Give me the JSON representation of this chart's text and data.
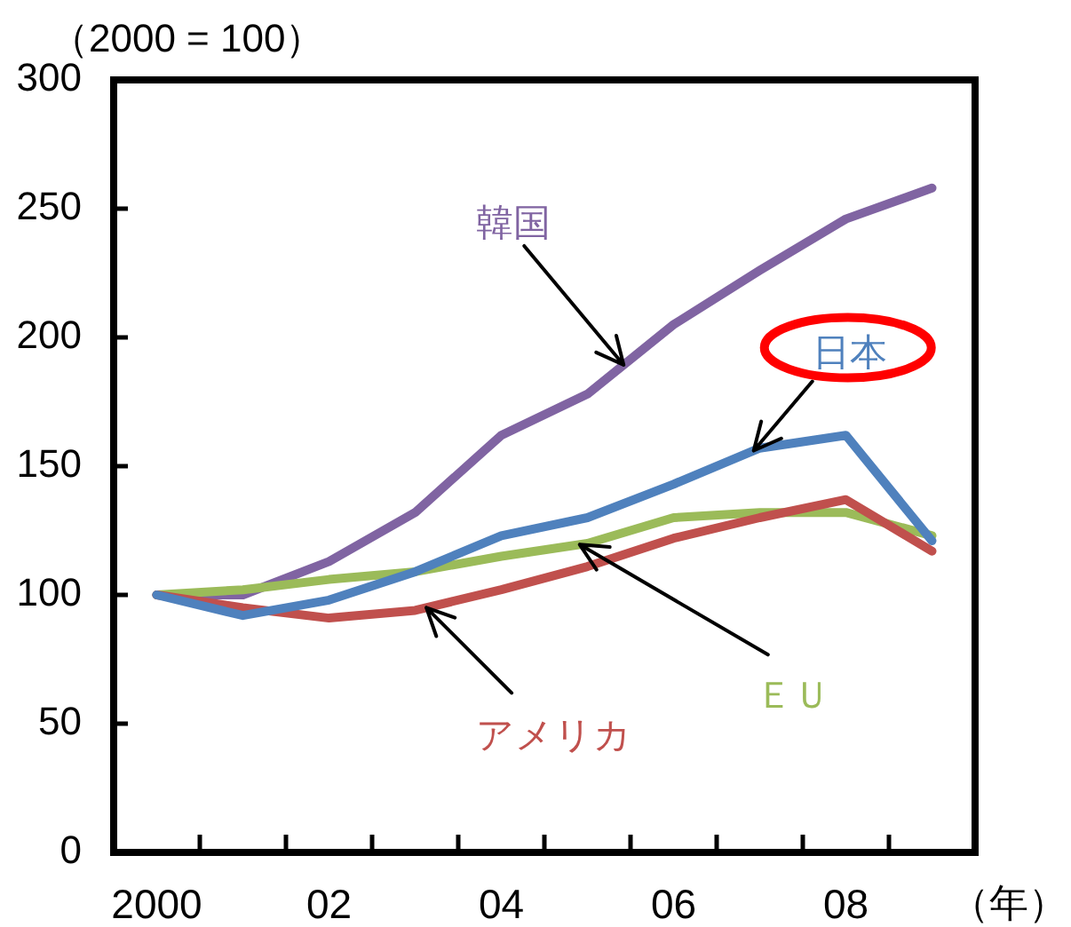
{
  "chart_data": {
    "type": "line",
    "xlabel": "（年）",
    "ylabel": "（2000 = 100）",
    "categories": [
      "2000",
      null,
      "02",
      null,
      "04",
      null,
      "06",
      null,
      "08",
      null
    ],
    "series": [
      {
        "name": "日本",
        "color": "#4f81bd",
        "values": [
          100,
          92,
          98,
          109,
          123,
          130,
          143,
          157,
          162,
          121
        ]
      },
      {
        "name": "アメリカ",
        "color": "#c0504d",
        "values": [
          100,
          95,
          91,
          94,
          102,
          111,
          122,
          130,
          137,
          117
        ]
      },
      {
        "name": "ＥＵ",
        "color": "#9bbb59",
        "values": [
          100,
          102,
          106,
          109,
          115,
          120,
          130,
          132,
          132,
          123
        ]
      },
      {
        "name": "韓国",
        "color": "#8064a2",
        "values": [
          100,
          100,
          113,
          132,
          162,
          178,
          205,
          226,
          246,
          258
        ]
      }
    ],
    "ylim": [
      0,
      300
    ],
    "yticks": [
      0,
      50,
      100,
      150,
      200,
      250,
      300
    ],
    "grid": false,
    "legend": false,
    "marker": "none",
    "line_style": "solid"
  }
}
